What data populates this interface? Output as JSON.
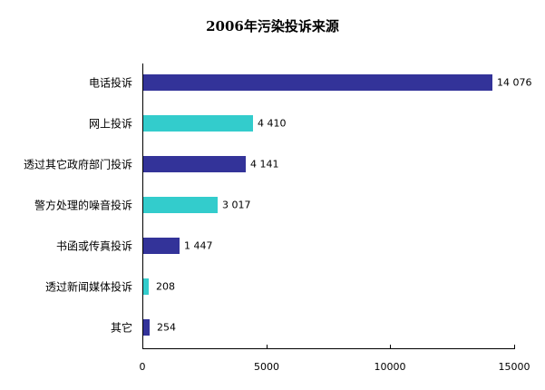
{
  "chart_data": {
    "type": "bar",
    "orientation": "horizontal",
    "title": "2006年污染投诉来源",
    "xlabel": "",
    "ylabel": "",
    "xlim": [
      0,
      15000
    ],
    "x_ticks": [
      "0",
      "5000",
      "10000",
      "15000"
    ],
    "grid": false,
    "legend": null,
    "categories": [
      "电话投诉",
      "网上投诉",
      "透过其它政府部门投诉",
      "警方处理的噪音投诉",
      "书函或传真投诉",
      "透过新闻媒体投诉",
      "其它"
    ],
    "values": [
      14076,
      4410,
      4141,
      3017,
      1447,
      208,
      254
    ],
    "value_labels": [
      "14 076",
      "4 410",
      "4 141",
      "3 017",
      "1 447",
      "208",
      "254"
    ],
    "bar_colors": [
      "#333399",
      "#33cccc",
      "#333399",
      "#33cccc",
      "#333399",
      "#33cccc",
      "#333399"
    ]
  }
}
